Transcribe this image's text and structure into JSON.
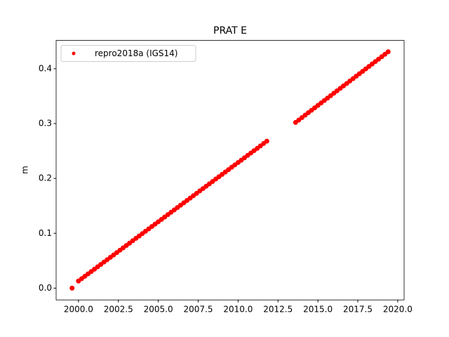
{
  "chart_data": {
    "type": "scatter",
    "title": "PRAT E",
    "ylabel": "m",
    "legend": "upper left",
    "xlim": [
      1998.6,
      2020.4
    ],
    "ylim": [
      -0.0215,
      0.4515
    ],
    "xticks": [
      {
        "value": 2000,
        "label": "2000.0"
      },
      {
        "value": 2002.5,
        "label": "2002.5"
      },
      {
        "value": 2005,
        "label": "2005.0"
      },
      {
        "value": 2007.5,
        "label": "2007.5"
      },
      {
        "value": 2010,
        "label": "2010.0"
      },
      {
        "value": 2012.5,
        "label": "2012.5"
      },
      {
        "value": 2015,
        "label": "2015.0"
      },
      {
        "value": 2017.5,
        "label": "2017.5"
      },
      {
        "value": 2020,
        "label": "2020.0"
      }
    ],
    "yticks": [
      {
        "value": 0,
        "label": "0.0"
      },
      0.1,
      0.2,
      0.3,
      0.4
    ],
    "series": [
      {
        "name": "repro2018a (IGS14)",
        "color": "#ff0000",
        "x": [
          1999.6,
          2000.0,
          2000.2,
          2000.4,
          2000.6,
          2000.8,
          2001.0,
          2001.2,
          2001.4,
          2001.6,
          2001.8,
          2002.0,
          2002.2,
          2002.4,
          2002.6,
          2002.8,
          2003.0,
          2003.2,
          2003.4,
          2003.6,
          2003.8,
          2004.0,
          2004.2,
          2004.4,
          2004.6,
          2004.8,
          2005.0,
          2005.2,
          2005.4,
          2005.6,
          2005.8,
          2006.0,
          2006.2,
          2006.4,
          2006.6,
          2006.8,
          2007.0,
          2007.2,
          2007.4,
          2007.6,
          2007.8,
          2008.0,
          2008.2,
          2008.4,
          2008.6,
          2008.8,
          2009.0,
          2009.2,
          2009.4,
          2009.6,
          2009.8,
          2010.0,
          2010.2,
          2010.4,
          2010.6,
          2010.8,
          2011.0,
          2011.2,
          2011.4,
          2011.6,
          2011.8,
          2013.6,
          2013.8,
          2014.0,
          2014.2,
          2014.4,
          2014.6,
          2014.8,
          2015.0,
          2015.2,
          2015.4,
          2015.6,
          2015.8,
          2016.0,
          2016.2,
          2016.4,
          2016.6,
          2016.8,
          2017.0,
          2017.2,
          2017.4,
          2017.6,
          2017.8,
          2018.0,
          2018.2,
          2018.4,
          2018.6,
          2018.8,
          2019.0,
          2019.2,
          2019.4
        ],
        "values": [
          0.0,
          0.013,
          0.0173,
          0.0216,
          0.026,
          0.0303,
          0.0346,
          0.0389,
          0.0432,
          0.0476,
          0.0519,
          0.0562,
          0.0605,
          0.0648,
          0.0692,
          0.0735,
          0.0778,
          0.0821,
          0.0864,
          0.0908,
          0.0951,
          0.0994,
          0.1037,
          0.108,
          0.1124,
          0.1167,
          0.121,
          0.1253,
          0.1296,
          0.134,
          0.1383,
          0.1426,
          0.1469,
          0.1512,
          0.1556,
          0.1599,
          0.1642,
          0.1685,
          0.1728,
          0.1772,
          0.1815,
          0.1858,
          0.1901,
          0.1944,
          0.1988,
          0.2031,
          0.2074,
          0.2117,
          0.216,
          0.2204,
          0.2247,
          0.229,
          0.2333,
          0.2376,
          0.242,
          0.2463,
          0.2506,
          0.2549,
          0.2592,
          0.2636,
          0.2679,
          0.302,
          0.3064,
          0.3109,
          0.3153,
          0.3198,
          0.3242,
          0.3286,
          0.3331,
          0.3375,
          0.342,
          0.3464,
          0.3508,
          0.3553,
          0.3597,
          0.3642,
          0.3686,
          0.373,
          0.3775,
          0.3819,
          0.3864,
          0.3908,
          0.3952,
          0.3997,
          0.4041,
          0.4086,
          0.413,
          0.4174,
          0.4219,
          0.4263,
          0.4308
        ]
      }
    ]
  }
}
